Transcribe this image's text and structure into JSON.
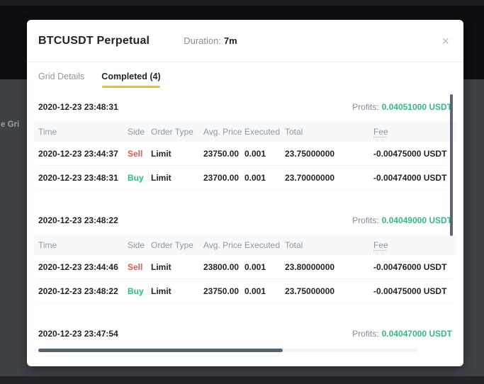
{
  "backdrop": {
    "partial_text": "e Gri"
  },
  "modal": {
    "title": "BTCUSDT Perpetual",
    "duration_label": "Duration:",
    "duration_value": "7m",
    "close_icon": "×",
    "profits_label": "Profits:",
    "tabs": [
      {
        "label": "Grid Details",
        "active": false
      },
      {
        "label": "Completed (4)",
        "active": true
      }
    ],
    "columns": [
      "Time",
      "Side",
      "Order Type",
      "Avg. Price",
      "Executed",
      "Total",
      "Fee"
    ],
    "sections": [
      {
        "timestamp": "2020-12-23 23:48:31",
        "profit": "0.04051000 USDT",
        "rows": [
          {
            "time": "2020-12-23 23:44:37",
            "side": "Sell",
            "order_type": "Limit",
            "avg_price": "23750.00",
            "executed": "0.001",
            "total": "23.75000000",
            "fee": "-0.00475000 USDT"
          },
          {
            "time": "2020-12-23 23:48:31",
            "side": "Buy",
            "order_type": "Limit",
            "avg_price": "23700.00",
            "executed": "0.001",
            "total": "23.70000000",
            "fee": "-0.00474000 USDT"
          }
        ]
      },
      {
        "timestamp": "2020-12-23 23:48:22",
        "profit": "0.04049000 USDT",
        "rows": [
          {
            "time": "2020-12-23 23:44:46",
            "side": "Sell",
            "order_type": "Limit",
            "avg_price": "23800.00",
            "executed": "0.001",
            "total": "23.80000000",
            "fee": "-0.00476000 USDT"
          },
          {
            "time": "2020-12-23 23:48:22",
            "side": "Buy",
            "order_type": "Limit",
            "avg_price": "23750.00",
            "executed": "0.001",
            "total": "23.75000000",
            "fee": "-0.00475000 USDT"
          }
        ]
      },
      {
        "timestamp": "2020-12-23 23:47:54",
        "profit": "0.04047000 USDT",
        "rows": []
      }
    ],
    "colors": {
      "accent": "#f3ba2f",
      "buy": "#2ebd85",
      "sell": "#e25a52",
      "profit": "#2ebd85"
    }
  }
}
